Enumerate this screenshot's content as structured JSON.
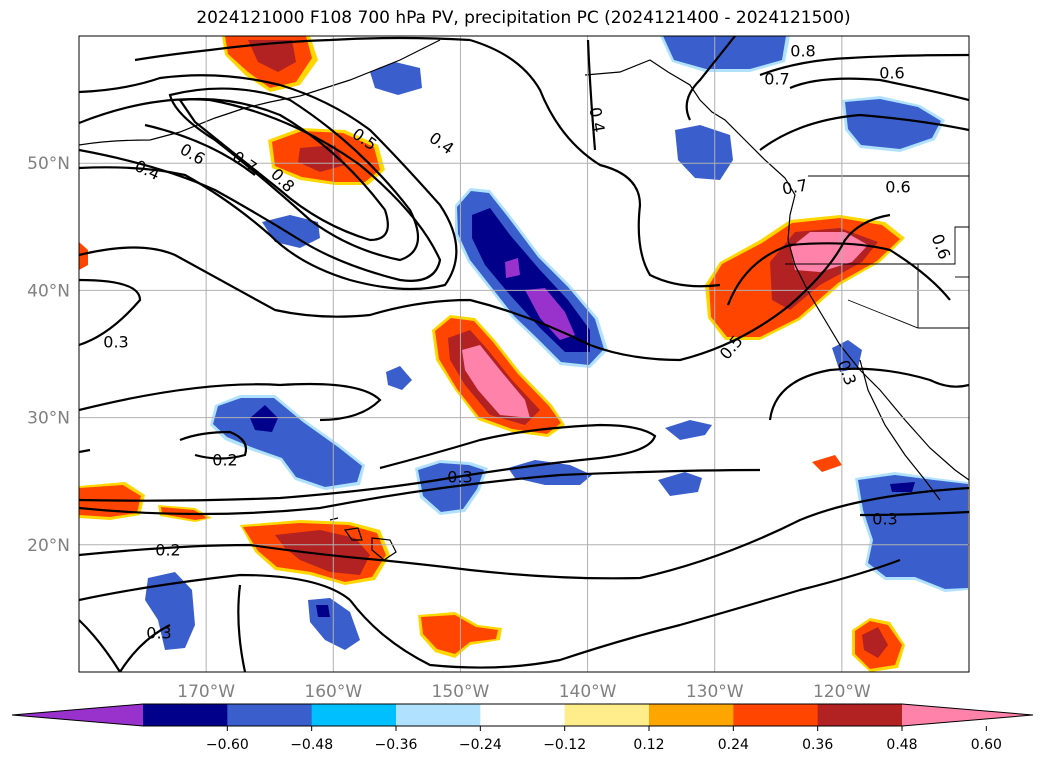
{
  "title": "2024121000 F108 700 hPa PV, precipitation PC (2024121400 - 2024121500)",
  "map": {
    "projection": "cylindrical",
    "lon_range": [
      -180,
      -110
    ],
    "lat_range": [
      10,
      60
    ],
    "lon_ticks": [
      -170,
      -160,
      -150,
      -140,
      -130,
      -120
    ],
    "lon_tick_labels": [
      "170°W",
      "160°W",
      "150°W",
      "140°W",
      "130°W",
      "120°W"
    ],
    "lat_ticks": [
      20,
      30,
      40,
      50
    ],
    "lat_tick_labels": [
      "20°N",
      "30°N",
      "40°N",
      "50°N"
    ],
    "grid": true
  },
  "contour_labels": [
    "0.8",
    "0.7",
    "0.6",
    "0.4",
    "0.6",
    "0.7",
    "0.8",
    "0.5",
    "0.4",
    "0.4",
    "0.7",
    "0.6",
    "0.6",
    "0.3",
    "0.5",
    "0.3",
    "0.2",
    "0.3",
    "0.2",
    "0.3",
    "0.3"
  ],
  "colorbar": {
    "colors": [
      "#9932cc",
      "#00008b",
      "#3a5fcd",
      "#00bfff",
      "#b0e2ff",
      "#ffffff",
      "#ffec8b",
      "#ffa500",
      "#ff4500",
      "#b22222",
      "#ff82ab"
    ],
    "tick_values": [
      "−0.60",
      "−0.48",
      "−0.36",
      "−0.24",
      "−0.12",
      "0.12",
      "0.24",
      "0.36",
      "0.48",
      "0.60"
    ],
    "extend": "both"
  }
}
